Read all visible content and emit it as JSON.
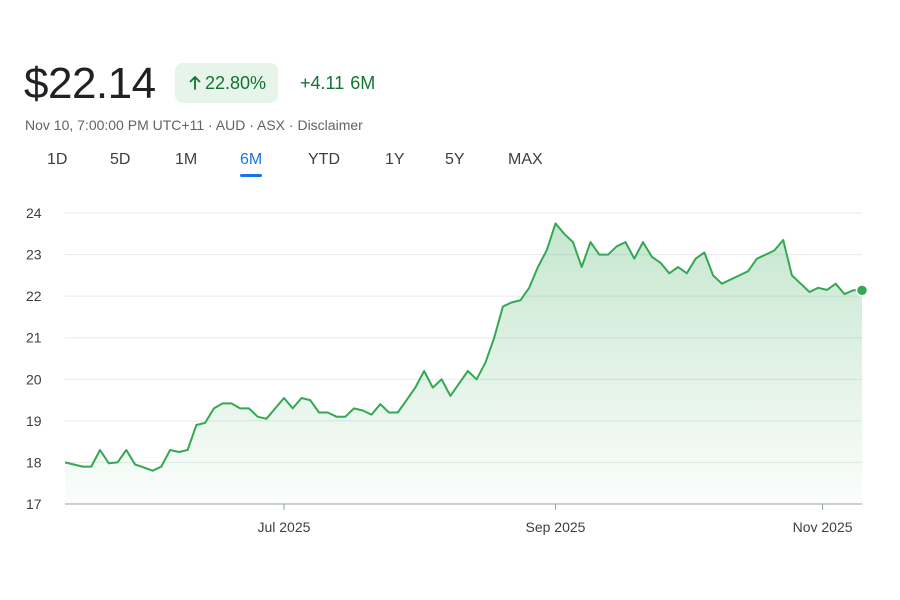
{
  "header": {
    "price": "$22.14",
    "pct_change": "22.80%",
    "abs_change": "+4.11",
    "period": "6M",
    "meta": "Nov 10, 7:00:00 PM UTC+11 · AUD · ASX · Disclaimer"
  },
  "tabs": [
    {
      "label": "1D",
      "active": false
    },
    {
      "label": "5D",
      "active": false
    },
    {
      "label": "1M",
      "active": false
    },
    {
      "label": "6M",
      "active": true
    },
    {
      "label": "YTD",
      "active": false
    },
    {
      "label": "1Y",
      "active": false
    },
    {
      "label": "5Y",
      "active": false
    },
    {
      "label": "MAX",
      "active": false
    }
  ],
  "colors": {
    "line": "#34a853",
    "positive": "#137333",
    "badge_bg": "#e6f4ea",
    "active_tab": "#1a73e8"
  },
  "chart_data": {
    "type": "area",
    "title": "",
    "xlabel": "",
    "ylabel": "",
    "ylim": [
      17,
      24
    ],
    "yticks": [
      17,
      18,
      19,
      20,
      21,
      22,
      23,
      24
    ],
    "xticks": [
      {
        "label": "Jul 2025",
        "date": "2025-07-01"
      },
      {
        "label": "Sep 2025",
        "date": "2025-09-01"
      },
      {
        "label": "Nov 2025",
        "date": "2025-11-01"
      }
    ],
    "xlim": [
      "2025-05-12",
      "2025-11-10"
    ],
    "grid": true,
    "series": [
      {
        "values": [
          [
            "2025-05-12",
            18.0
          ],
          [
            "2025-05-14",
            17.95
          ],
          [
            "2025-05-16",
            17.9
          ],
          [
            "2025-05-18",
            17.9
          ],
          [
            "2025-05-20",
            18.3
          ],
          [
            "2025-05-22",
            17.98
          ],
          [
            "2025-05-24",
            18.0
          ],
          [
            "2025-05-26",
            18.3
          ],
          [
            "2025-05-28",
            17.95
          ],
          [
            "2025-05-30",
            17.88
          ],
          [
            "2025-06-01",
            17.8
          ],
          [
            "2025-06-03",
            17.9
          ],
          [
            "2025-06-05",
            18.3
          ],
          [
            "2025-06-07",
            18.25
          ],
          [
            "2025-06-09",
            18.3
          ],
          [
            "2025-06-11",
            18.9
          ],
          [
            "2025-06-13",
            18.95
          ],
          [
            "2025-06-15",
            19.3
          ],
          [
            "2025-06-17",
            19.42
          ],
          [
            "2025-06-19",
            19.42
          ],
          [
            "2025-06-21",
            19.3
          ],
          [
            "2025-06-23",
            19.3
          ],
          [
            "2025-06-25",
            19.1
          ],
          [
            "2025-06-27",
            19.05
          ],
          [
            "2025-06-29",
            19.3
          ],
          [
            "2025-07-01",
            19.55
          ],
          [
            "2025-07-03",
            19.3
          ],
          [
            "2025-07-05",
            19.55
          ],
          [
            "2025-07-07",
            19.5
          ],
          [
            "2025-07-09",
            19.2
          ],
          [
            "2025-07-11",
            19.2
          ],
          [
            "2025-07-13",
            19.1
          ],
          [
            "2025-07-15",
            19.1
          ],
          [
            "2025-07-17",
            19.3
          ],
          [
            "2025-07-19",
            19.25
          ],
          [
            "2025-07-21",
            19.15
          ],
          [
            "2025-07-23",
            19.4
          ],
          [
            "2025-07-25",
            19.2
          ],
          [
            "2025-07-27",
            19.2
          ],
          [
            "2025-07-29",
            19.5
          ],
          [
            "2025-07-31",
            19.8
          ],
          [
            "2025-08-02",
            20.2
          ],
          [
            "2025-08-04",
            19.8
          ],
          [
            "2025-08-06",
            20.0
          ],
          [
            "2025-08-08",
            19.6
          ],
          [
            "2025-08-10",
            19.9
          ],
          [
            "2025-08-12",
            20.2
          ],
          [
            "2025-08-14",
            20.0
          ],
          [
            "2025-08-16",
            20.4
          ],
          [
            "2025-08-18",
            21.0
          ],
          [
            "2025-08-20",
            21.75
          ],
          [
            "2025-08-22",
            21.85
          ],
          [
            "2025-08-24",
            21.9
          ],
          [
            "2025-08-26",
            22.2
          ],
          [
            "2025-08-28",
            22.7
          ],
          [
            "2025-08-30",
            23.1
          ],
          [
            "2025-09-01",
            23.75
          ],
          [
            "2025-09-03",
            23.5
          ],
          [
            "2025-09-05",
            23.3
          ],
          [
            "2025-09-07",
            22.7
          ],
          [
            "2025-09-09",
            23.3
          ],
          [
            "2025-09-11",
            23.0
          ],
          [
            "2025-09-13",
            23.0
          ],
          [
            "2025-09-15",
            23.2
          ],
          [
            "2025-09-17",
            23.3
          ],
          [
            "2025-09-19",
            22.9
          ],
          [
            "2025-09-21",
            23.3
          ],
          [
            "2025-09-23",
            22.95
          ],
          [
            "2025-09-25",
            22.8
          ],
          [
            "2025-09-27",
            22.55
          ],
          [
            "2025-09-29",
            22.7
          ],
          [
            "2025-10-01",
            22.55
          ],
          [
            "2025-10-03",
            22.9
          ],
          [
            "2025-10-05",
            23.05
          ],
          [
            "2025-10-07",
            22.5
          ],
          [
            "2025-10-09",
            22.3
          ],
          [
            "2025-10-11",
            22.4
          ],
          [
            "2025-10-13",
            22.5
          ],
          [
            "2025-10-15",
            22.6
          ],
          [
            "2025-10-17",
            22.9
          ],
          [
            "2025-10-19",
            23.0
          ],
          [
            "2025-10-21",
            23.1
          ],
          [
            "2025-10-23",
            23.35
          ],
          [
            "2025-10-25",
            22.5
          ],
          [
            "2025-10-27",
            22.3
          ],
          [
            "2025-10-29",
            22.1
          ],
          [
            "2025-10-31",
            22.2
          ],
          [
            "2025-11-02",
            22.15
          ],
          [
            "2025-11-04",
            22.3
          ],
          [
            "2025-11-06",
            22.05
          ],
          [
            "2025-11-08",
            22.14
          ],
          [
            "2025-11-10",
            22.14
          ]
        ]
      }
    ]
  }
}
